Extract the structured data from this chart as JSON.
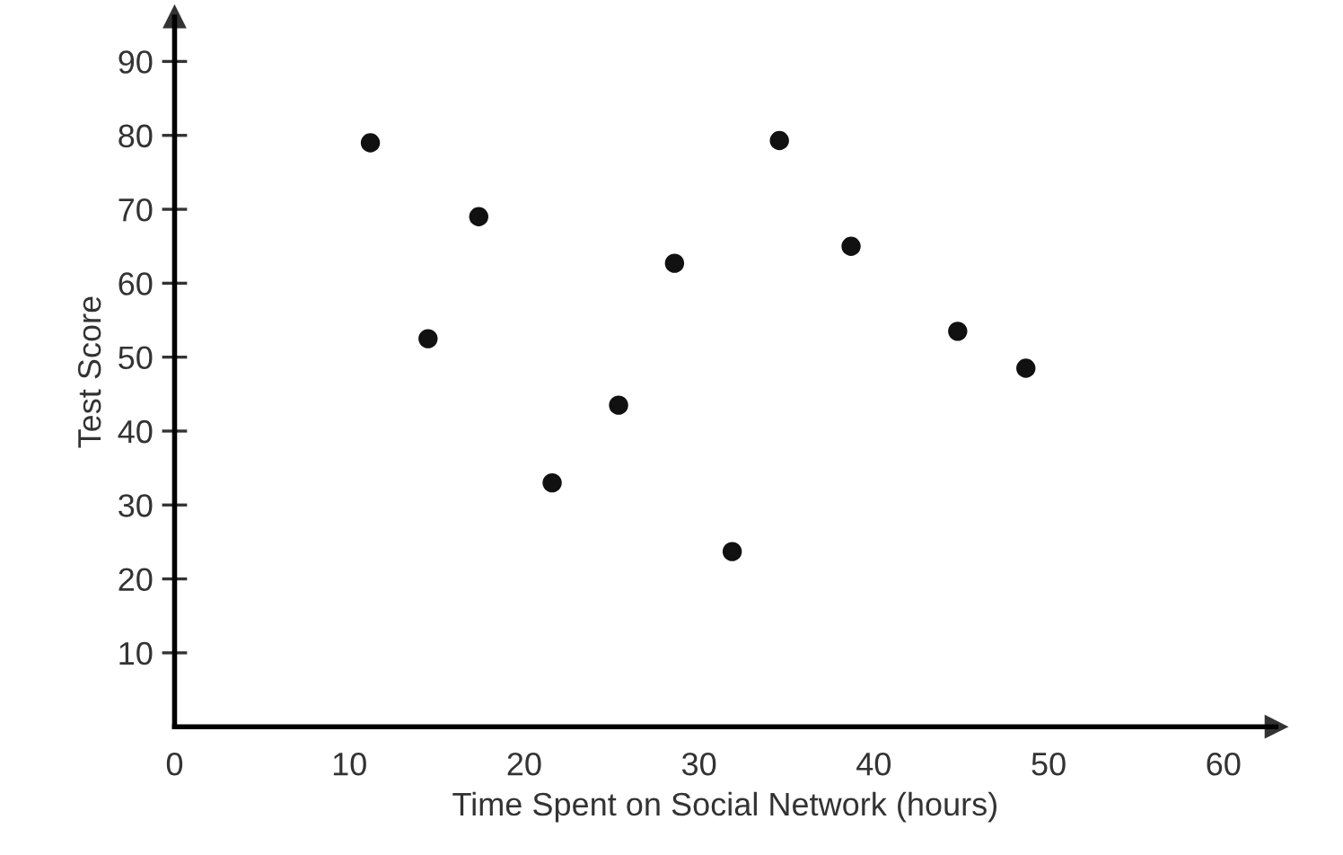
{
  "chart_data": {
    "type": "scatter",
    "xlabel": "Time Spent on Social Network (hours)",
    "ylabel": "Test Score",
    "series": [
      {
        "color": "#111111",
        "x": [
          11.2,
          14.5,
          17.4,
          21.6,
          25.4,
          28.6,
          31.9,
          34.6,
          38.7,
          44.8,
          48.7
        ],
        "values": [
          79,
          52.5,
          69,
          33,
          43.5,
          62.7,
          23.7,
          79.3,
          65,
          53.5,
          48.5
        ]
      }
    ],
    "xlim": [
      0,
      63
    ],
    "ylim": [
      0,
      96
    ],
    "xticks": [
      0,
      10,
      20,
      30,
      40,
      50,
      60
    ],
    "yticks": [
      10,
      20,
      30,
      40,
      50,
      60,
      70,
      80,
      90
    ],
    "grid": false,
    "legend": false,
    "marker": "circle"
  }
}
